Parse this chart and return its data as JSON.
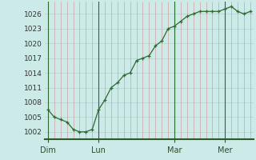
{
  "y_values": [
    1006.5,
    1005.0,
    1004.5,
    1004.0,
    1002.5,
    1002.0,
    1002.0,
    1002.5,
    1006.5,
    1008.5,
    1011.0,
    1012.0,
    1013.5,
    1014.0,
    1016.5,
    1017.0,
    1017.5,
    1019.5,
    1020.5,
    1023.0,
    1023.5,
    1024.5,
    1025.5,
    1026.0,
    1026.5,
    1026.5,
    1026.5,
    1026.5,
    1027.0,
    1027.5,
    1026.5,
    1026.0,
    1026.5
  ],
  "x_tick_labels": [
    "Dim",
    "Lun",
    "Mar",
    "Mer"
  ],
  "x_tick_positions": [
    0,
    8,
    20,
    28
  ],
  "yticks": [
    1002,
    1005,
    1008,
    1011,
    1014,
    1017,
    1020,
    1023,
    1026
  ],
  "line_color": "#2d6a2d",
  "bg_color": "#cceae8",
  "grid_color_h": "#b8d8d8",
  "grid_color_v": "#d4a0a0",
  "vline_color_day": "#2d6a2d",
  "bottom_spine_color": "#2d5a2d",
  "ymin": 1000.5,
  "ymax": 1028.5,
  "xmin": -0.5,
  "xmax": 32.5,
  "n_vgrid": 33,
  "label_fontsize": 6.5,
  "xlabel_fontsize": 7
}
